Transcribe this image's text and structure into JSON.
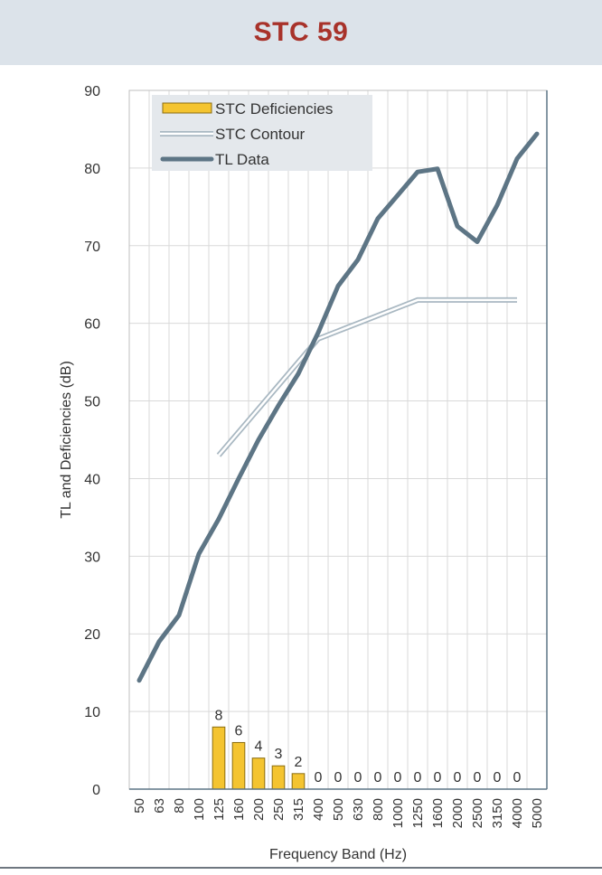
{
  "header": {
    "title": "STC 59"
  },
  "colors": {
    "header_bg": "#dce3ea",
    "title": "#a8322a",
    "tl_line": "#5d7585",
    "contour": "#a9b8c2",
    "bars": "#f4c430",
    "bar_outline": "#8a6d10"
  },
  "chart_data": {
    "type": "line",
    "title": "",
    "xlabel": "Frequency Band (Hz)",
    "ylabel": "TL and Deficiencies (dB)",
    "ylim": [
      0,
      90
    ],
    "yticks": [
      0,
      10,
      20,
      30,
      40,
      50,
      60,
      70,
      80,
      90
    ],
    "categories": [
      "50",
      "63",
      "80",
      "100",
      "125",
      "160",
      "200",
      "250",
      "315",
      "400",
      "500",
      "630",
      "800",
      "1000",
      "1250",
      "1600",
      "2000",
      "2500",
      "3150",
      "4000",
      "5000"
    ],
    "grid": true,
    "legend_position": "top-left",
    "series": [
      {
        "name": "STC Deficiencies",
        "kind": "bar",
        "values": [
          null,
          null,
          null,
          null,
          8,
          6,
          4,
          3,
          2,
          0,
          0,
          0,
          0,
          0,
          0,
          0,
          0,
          0,
          0,
          0,
          null
        ]
      },
      {
        "name": "STC Contour",
        "kind": "double-line",
        "values": [
          null,
          null,
          null,
          null,
          43,
          46,
          49,
          52,
          55,
          58,
          59,
          60,
          61,
          62,
          63,
          63,
          63,
          63,
          63,
          63,
          null
        ]
      },
      {
        "name": "TL Data",
        "kind": "line",
        "values": [
          14,
          19,
          22.4,
          30.3,
          34.8,
          40,
          45,
          49.4,
          53.5,
          58.8,
          64.8,
          68.2,
          73.5,
          76.5,
          79.5,
          79.9,
          72.5,
          70.5,
          75.2,
          81.2,
          84.4
        ]
      }
    ]
  }
}
